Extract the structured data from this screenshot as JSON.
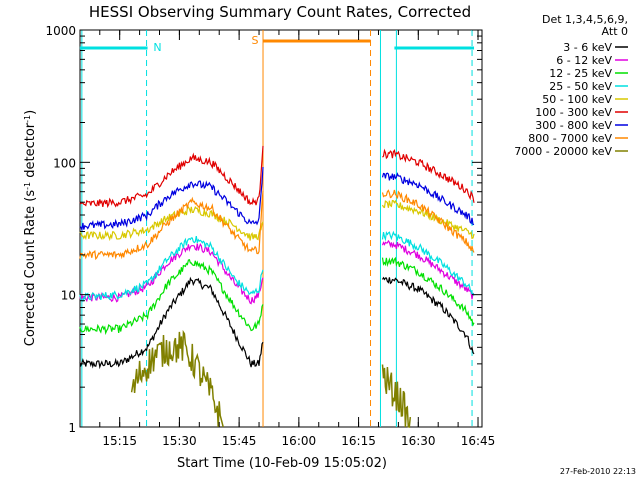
{
  "chart_data": {
    "type": "line",
    "title": "HESSI Observing Summary Count Rates, Corrected",
    "xlabel": "Start Time (10-Feb-09 15:05:02)",
    "ylabel": "Corrected Count Rate (s⁻¹ detector⁻¹)",
    "ylabel_main": "Corrected Count Rate (s",
    "ylabel_sup1": "-1",
    "ylabel_mid": " detector",
    "ylabel_sup2": "-1",
    "ylabel_end": ")",
    "yscale": "log",
    "ylim": [
      1,
      1000
    ],
    "xlim": [
      "15:05:02",
      "16:46:00"
    ],
    "xticks": [
      "15:15",
      "15:30",
      "15:45",
      "16:00",
      "16:15",
      "16:30",
      "16:45"
    ],
    "yticks": [
      "1",
      "10",
      "100",
      "1000"
    ],
    "legend": {
      "placement": "right-outside",
      "header": [
        "Det 1,3,4,5,6,9,",
        "Att 0"
      ]
    },
    "series": [
      {
        "name": "3 - 6 keV",
        "color": "#000000",
        "x": [
          "15:05",
          "15:15",
          "15:22",
          "15:27",
          "15:33",
          "15:38",
          "15:44",
          "15:48",
          "15:50",
          "15:51",
          "16:21",
          "16:24",
          "16:30",
          "16:36",
          "16:42",
          "16:44"
        ],
        "y": [
          3.0,
          3.0,
          4.0,
          7.5,
          13.0,
          11.0,
          5.0,
          3.0,
          3.0,
          4.5,
          13.0,
          13.0,
          11.0,
          8.0,
          5.0,
          3.5
        ]
      },
      {
        "name": "6 - 12 keV",
        "color": "#e000e0",
        "x": [
          "15:05",
          "15:15",
          "15:22",
          "15:27",
          "15:33",
          "15:38",
          "15:44",
          "15:48",
          "15:50",
          "15:51",
          "16:21",
          "16:24",
          "16:30",
          "16:36",
          "16:42",
          "16:44"
        ],
        "y": [
          9.5,
          9.5,
          11.5,
          17.5,
          24.0,
          21.0,
          12.0,
          9.0,
          10.0,
          14.0,
          24.0,
          24.0,
          20.0,
          15.0,
          11.0,
          9.5
        ]
      },
      {
        "name": "12 - 25 keV",
        "color": "#00e000",
        "x": [
          "15:05",
          "15:15",
          "15:22",
          "15:27",
          "15:33",
          "15:38",
          "15:44",
          "15:48",
          "15:50",
          "15:51",
          "16:21",
          "16:24",
          "16:30",
          "16:36",
          "16:42",
          "16:44"
        ],
        "y": [
          5.5,
          5.5,
          7.0,
          12.0,
          18.0,
          15.0,
          8.0,
          5.5,
          6.0,
          9.0,
          18.0,
          18.0,
          15.0,
          11.0,
          7.5,
          6.0
        ]
      },
      {
        "name": "25 - 50 keV",
        "color": "#00e0e0",
        "x": [
          "15:05",
          "15:15",
          "15:22",
          "15:27",
          "15:33",
          "15:38",
          "15:44",
          "15:48",
          "15:50",
          "15:51",
          "16:21",
          "16:24",
          "16:30",
          "16:36",
          "16:42",
          "16:44"
        ],
        "y": [
          9.5,
          10.0,
          12.0,
          18.5,
          27.0,
          23.0,
          13.0,
          10.0,
          11.0,
          16.0,
          28.0,
          28.0,
          23.0,
          17.0,
          12.0,
          10.0
        ]
      },
      {
        "name": "50 - 100 keV",
        "color": "#d8c800",
        "x": [
          "15:05",
          "15:15",
          "15:22",
          "15:27",
          "15:33",
          "15:38",
          "15:44",
          "15:48",
          "15:50",
          "15:51",
          "16:21",
          "16:24",
          "16:30",
          "16:36",
          "16:42",
          "16:44"
        ],
        "y": [
          28.0,
          28.0,
          31.0,
          38.0,
          44.0,
          41.0,
          33.0,
          27.0,
          28.0,
          34.0,
          48.0,
          48.0,
          43.0,
          36.0,
          30.0,
          28.0
        ]
      },
      {
        "name": "100 - 300 keV",
        "color": "#e00000",
        "x": [
          "15:05",
          "15:15",
          "15:22",
          "15:27",
          "15:33",
          "15:38",
          "15:44",
          "15:48",
          "15:50",
          "15:51",
          "16:21",
          "16:24",
          "16:30",
          "16:36",
          "16:42",
          "16:44"
        ],
        "y": [
          48.0,
          50.0,
          57.0,
          80.0,
          108.0,
          100.0,
          66.0,
          49.0,
          52.0,
          140.0,
          115.0,
          115.0,
          100.0,
          80.0,
          62.0,
          53.0
        ]
      },
      {
        "name": "300 - 800 keV",
        "color": "#0000e0",
        "x": [
          "15:05",
          "15:15",
          "15:22",
          "15:27",
          "15:33",
          "15:38",
          "15:44",
          "15:48",
          "15:50",
          "15:51",
          "16:21",
          "16:24",
          "16:30",
          "16:36",
          "16:42",
          "16:44"
        ],
        "y": [
          33.0,
          34.0,
          40.0,
          55.0,
          70.0,
          65.0,
          44.0,
          34.0,
          36.0,
          95.0,
          78.0,
          78.0,
          68.0,
          52.0,
          40.0,
          35.0
        ]
      },
      {
        "name": "800 - 7000 keV",
        "color": "#ff8800",
        "x": [
          "15:05",
          "15:15",
          "15:22",
          "15:27",
          "15:33",
          "15:38",
          "15:44",
          "15:48",
          "15:50",
          "15:51",
          "16:21",
          "16:24",
          "16:30",
          "16:36",
          "16:42",
          "16:44"
        ],
        "y": [
          20.0,
          20.0,
          24.0,
          35.0,
          50.0,
          45.0,
          28.0,
          21.0,
          22.0,
          60.0,
          58.0,
          58.0,
          48.0,
          35.0,
          25.0,
          21.0
        ]
      },
      {
        "name": "7000 - 20000 keV",
        "color": "#808000",
        "x": [
          "15:18",
          "15:20",
          "15:24",
          "15:28",
          "15:31",
          "15:34",
          "15:37",
          "15:39",
          "15:41",
          "16:21",
          "16:23",
          "16:26",
          "16:28"
        ],
        "y": [
          1.8,
          2.5,
          3.5,
          4.0,
          4.0,
          3.0,
          2.0,
          1.5,
          1.0,
          2.5,
          2.0,
          1.5,
          1.0
        ]
      }
    ],
    "flags": [
      {
        "label": "N",
        "color": "#00e0e0",
        "start": "15:05",
        "end": "15:22"
      },
      {
        "label": "S",
        "color": "#ff8800",
        "start": "15:51",
        "end": "16:18"
      },
      {
        "label": "",
        "color": "#00e0e0",
        "start": "16:24",
        "end": "16:44"
      }
    ],
    "vertical_lines": [
      {
        "t": "15:05:30",
        "color": "#00e0e0",
        "style": "solid"
      },
      {
        "t": "15:21:45",
        "color": "#00e0e0",
        "style": "dashed"
      },
      {
        "t": "15:51:00",
        "color": "#ff8800",
        "style": "solid"
      },
      {
        "t": "16:18:00",
        "color": "#ff8800",
        "style": "dashed"
      },
      {
        "t": "16:20:30",
        "color": "#00e0e0",
        "style": "solid"
      },
      {
        "t": "16:24:30",
        "color": "#00e0e0",
        "style": "solid"
      },
      {
        "t": "16:43:30",
        "color": "#00e0e0",
        "style": "dashed"
      }
    ],
    "grid": false
  },
  "footer": {
    "timestamp": "27-Feb-2010 22:13"
  }
}
